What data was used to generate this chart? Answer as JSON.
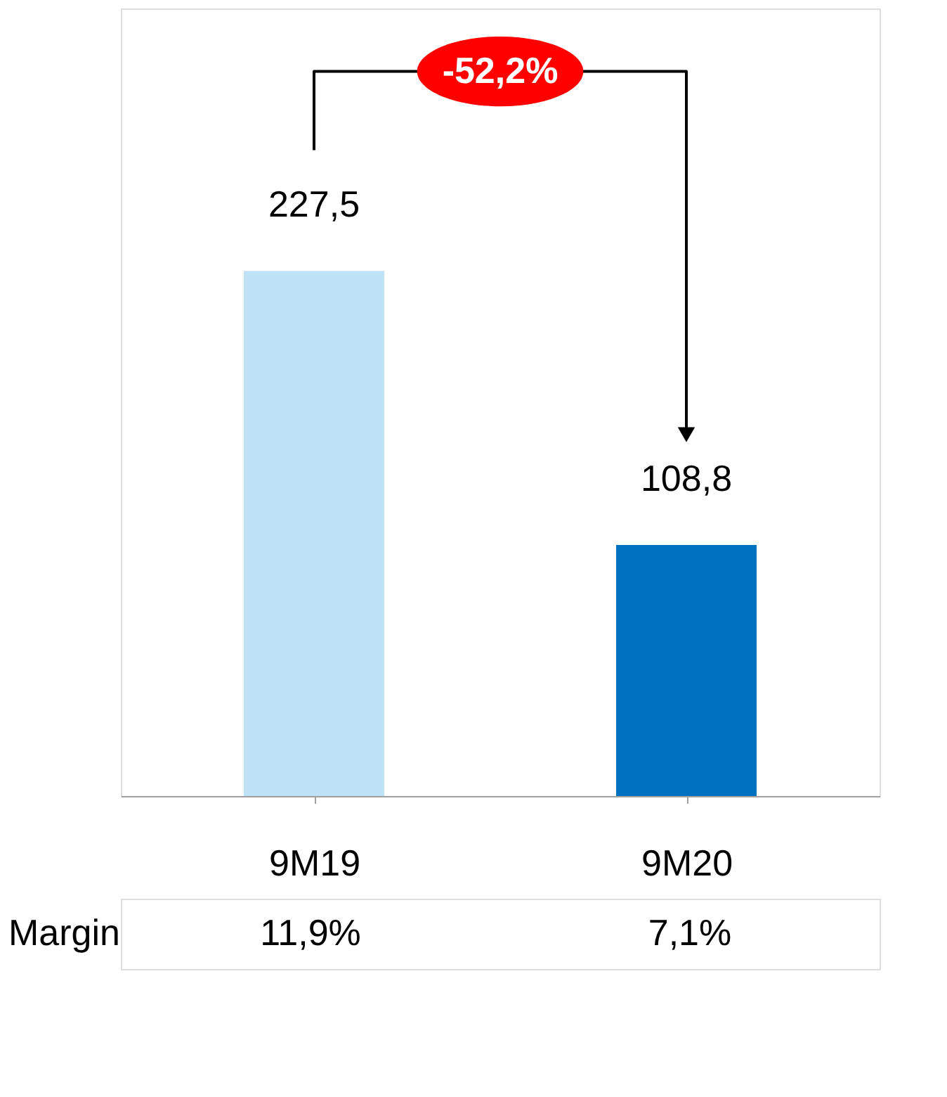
{
  "chart_data": {
    "type": "bar",
    "categories": [
      "9M19",
      "9M20"
    ],
    "values": [
      227.5,
      108.8
    ],
    "value_labels": [
      "227,5",
      "108,8"
    ],
    "colors": [
      "#bfe2f7",
      "#0070c0"
    ],
    "annotations": [
      "-52,2%",
      "Margin",
      "11,9%",
      "7,1%"
    ],
    "grid": false,
    "legend": false
  }
}
